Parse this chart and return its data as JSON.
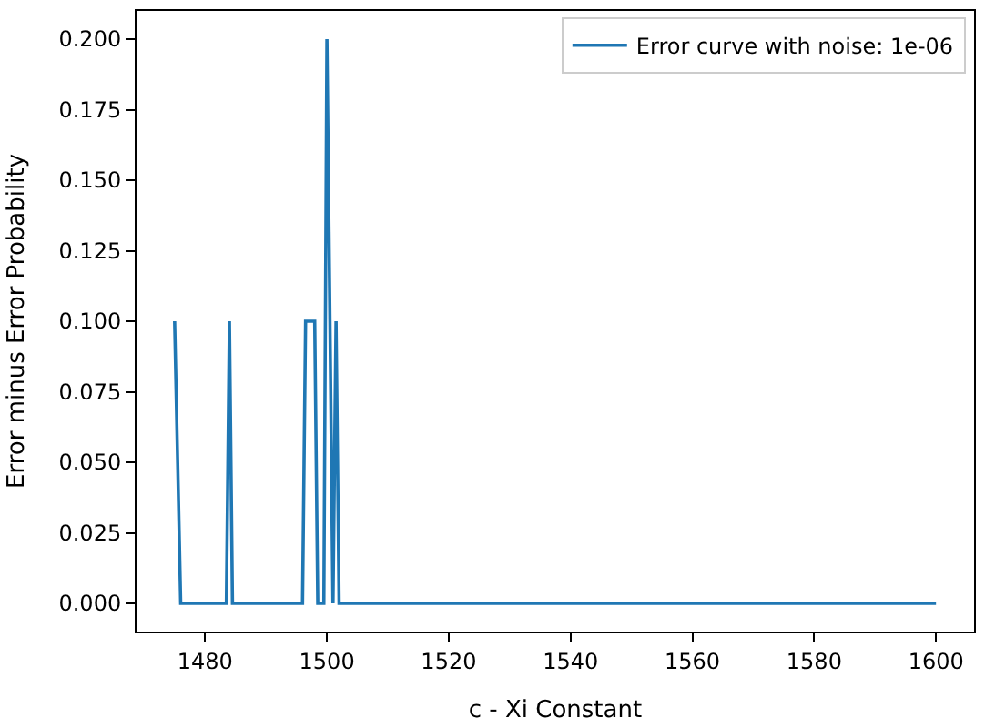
{
  "chart_data": {
    "type": "line",
    "xlabel": "c - Xi Constant",
    "ylabel": "Error minus Error Probability",
    "xlim": [
      1468.75,
      1606.25
    ],
    "xticks": [
      1480,
      1500,
      1520,
      1540,
      1560,
      1580,
      1600
    ],
    "ylim": [
      -0.01,
      0.21
    ],
    "yticks": [
      {
        "value": 0,
        "label": "0.000"
      },
      {
        "value": 0.025,
        "label": "0.025"
      },
      {
        "value": 0.05,
        "label": "0.050"
      },
      {
        "value": 0.075,
        "label": "0.075"
      },
      {
        "value": 0.1,
        "label": "0.100"
      },
      {
        "value": 0.125,
        "label": "0.125"
      },
      {
        "value": 0.15,
        "label": "0.150"
      },
      {
        "value": 0.175,
        "label": "0.175"
      },
      {
        "value": 0.2,
        "label": "0.200"
      }
    ],
    "x": [
      1475,
      1476,
      1483.5,
      1484,
      1484.5,
      1496,
      1496.5,
      1498,
      1498.5,
      1499.5,
      1500,
      1501,
      1501.5,
      1502,
      1600
    ],
    "series": [
      {
        "name": "Error curve with noise: 1e-06",
        "color": "#1f77b4",
        "values": [
          0.1,
          0,
          0,
          0.1,
          0,
          0,
          0.1,
          0.1,
          0,
          0,
          0.2,
          0,
          0.1,
          0,
          0
        ]
      }
    ],
    "legend": "top right",
    "marker": "none",
    "line_style": "solid"
  }
}
